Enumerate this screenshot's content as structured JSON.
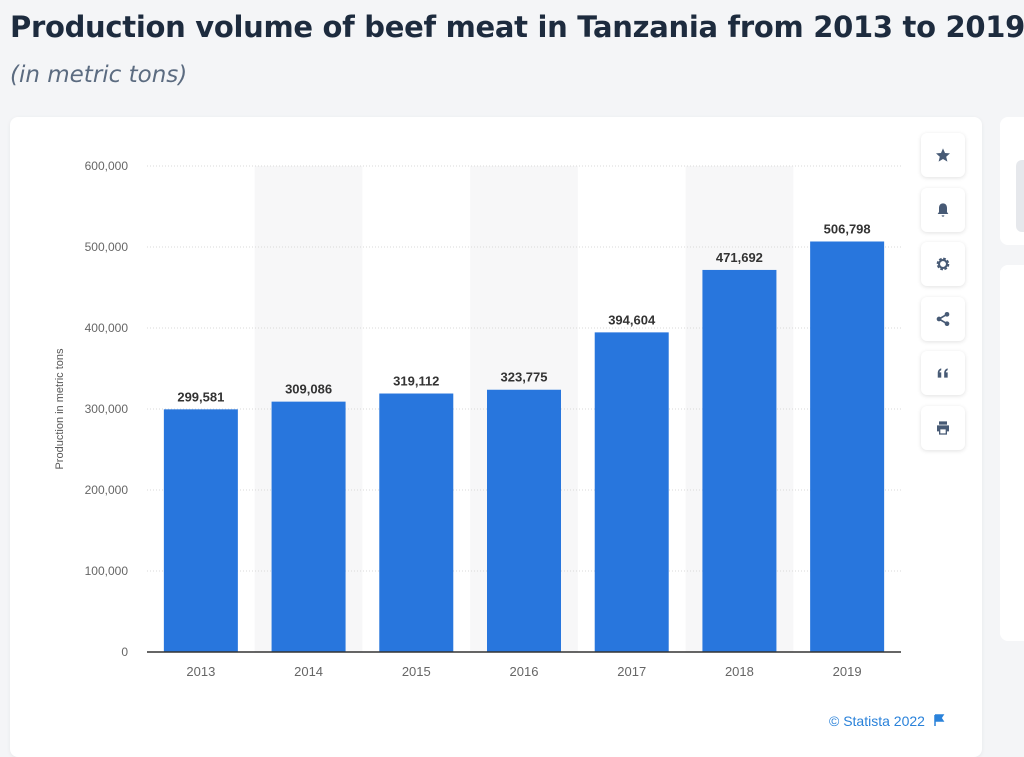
{
  "title": "Production volume of beef meat in Tanzania from 2013 to 2019",
  "subtitle": "(in metric tons)",
  "credit": "© Statista 2022",
  "toolbar": [
    "star-icon",
    "bell-icon",
    "gear-icon",
    "share-icon",
    "quote-icon",
    "print-icon"
  ],
  "colors": {
    "bar": "#2876dd",
    "band": "#f7f7f8",
    "grid": "#d9d9d9",
    "accent": "#2a82da"
  },
  "chart_data": {
    "type": "bar",
    "categories": [
      "2013",
      "2014",
      "2015",
      "2016",
      "2017",
      "2018",
      "2019"
    ],
    "values": [
      299581,
      309086,
      319112,
      323775,
      394604,
      471692,
      506798
    ],
    "labels": [
      "299,581",
      "309,086",
      "319,112",
      "323,775",
      "394,604",
      "471,692",
      "506,798"
    ],
    "ylabel": "Production in metric tons",
    "ylim": [
      0,
      600000
    ],
    "yticks": [
      0,
      100000,
      200000,
      300000,
      400000,
      500000,
      600000
    ],
    "ytick_labels": [
      "0",
      "100,000",
      "200,000",
      "300,000",
      "400,000",
      "500,000",
      "600,000"
    ],
    "grid": true,
    "legend": "none"
  }
}
